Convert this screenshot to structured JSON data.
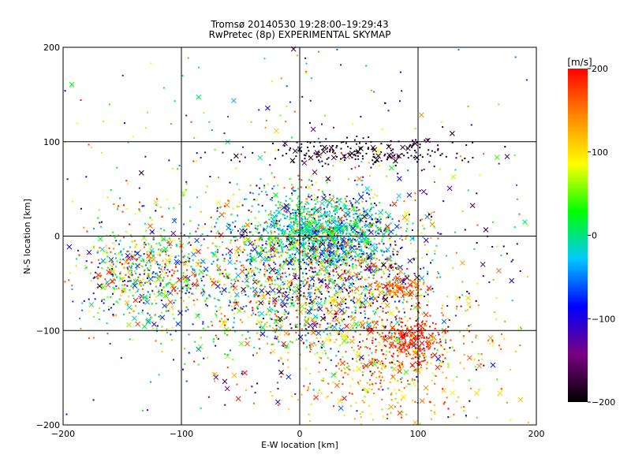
{
  "chart_data": {
    "type": "scatter",
    "title": "Tromsø 20140530 19:28:00–19:29:43",
    "subtitle": "RwPretec (8p) EXPERIMENTAL SKYMAP",
    "xlabel": "E-W location [km]",
    "ylabel": "N-S location [km]",
    "xlim": [
      -200,
      200
    ],
    "ylim": [
      -200,
      200
    ],
    "xticks": [
      -200,
      -100,
      0,
      100,
      200
    ],
    "yticks": [
      -200,
      -100,
      0,
      100,
      200
    ],
    "grid": true,
    "colorbar": {
      "label": "[m/s]",
      "min": -200,
      "max": 200,
      "ticks": [
        -200,
        -100,
        0,
        100,
        200
      ],
      "stops": [
        "#000000",
        "#7a0080",
        "#0000ff",
        "#00c8ff",
        "#00ff00",
        "#ffff00",
        "#ff8800",
        "#ff0000"
      ]
    },
    "markers": {
      "small": "dot",
      "large": "x"
    },
    "clusters": [
      {
        "cx": 20,
        "cy": 5,
        "sx": 28,
        "sy": 18,
        "n": 900,
        "vmin": -60,
        "vmax": 40
      },
      {
        "cx": 25,
        "cy": -40,
        "sx": 45,
        "sy": 45,
        "n": 1400,
        "vmin": -200,
        "vmax": 200
      },
      {
        "cx": 90,
        "cy": -110,
        "sx": 15,
        "sy": 12,
        "n": 260,
        "vmin": 170,
        "vmax": 200
      },
      {
        "cx": 85,
        "cy": -55,
        "sx": 12,
        "sy": 6,
        "n": 120,
        "vmin": 120,
        "vmax": 200
      },
      {
        "cx": -135,
        "cy": -40,
        "sx": 25,
        "sy": 25,
        "n": 500,
        "vmin": -120,
        "vmax": 200
      },
      {
        "cx": -50,
        "cy": -40,
        "sx": 50,
        "sy": 40,
        "n": 600,
        "vmin": -100,
        "vmax": 200
      },
      {
        "cx": 60,
        "cy": 90,
        "sx": 40,
        "sy": 8,
        "n": 200,
        "vmin": -200,
        "vmax": -170
      },
      {
        "cx": 80,
        "cy": -140,
        "sx": 50,
        "sy": 40,
        "n": 500,
        "vmin": 40,
        "vmax": 200
      },
      {
        "cx": 0,
        "cy": 0,
        "sx": 120,
        "sy": 110,
        "n": 700,
        "vmin": -200,
        "vmax": 200
      }
    ]
  }
}
